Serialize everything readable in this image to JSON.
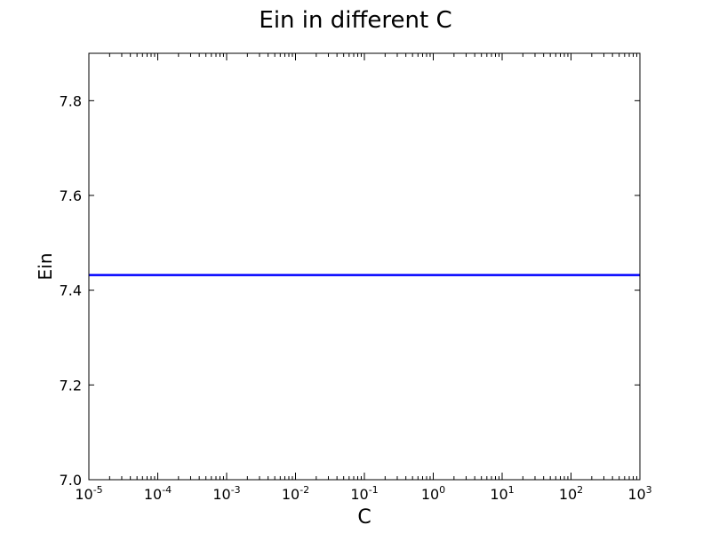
{
  "chart_data": {
    "type": "line",
    "title": "Ein in different C",
    "xlabel": "C",
    "ylabel": "Ein",
    "x_scale": "log",
    "xlim": [
      1e-05,
      1000
    ],
    "ylim": [
      7.0,
      7.9
    ],
    "x_ticks": [
      {
        "value": 1e-05,
        "base": "10",
        "exp": "-5"
      },
      {
        "value": 0.0001,
        "base": "10",
        "exp": "-4"
      },
      {
        "value": 0.001,
        "base": "10",
        "exp": "-3"
      },
      {
        "value": 0.01,
        "base": "10",
        "exp": "-2"
      },
      {
        "value": 0.1,
        "base": "10",
        "exp": "-1"
      },
      {
        "value": 1,
        "base": "10",
        "exp": "0"
      },
      {
        "value": 10,
        "base": "10",
        "exp": "1"
      },
      {
        "value": 100,
        "base": "10",
        "exp": "2"
      },
      {
        "value": 1000,
        "base": "10",
        "exp": "3"
      }
    ],
    "y_ticks": [
      "7.0",
      "7.2",
      "7.4",
      "7.6",
      "7.8"
    ],
    "grid": false,
    "series": [
      {
        "color": "#0000ff",
        "x": [
          1e-05,
          0.0001,
          0.001,
          0.01,
          0.1,
          1,
          10,
          100,
          1000
        ],
        "y": [
          7.432,
          7.432,
          7.432,
          7.432,
          7.432,
          7.432,
          7.432,
          7.432,
          7.432
        ]
      }
    ]
  }
}
